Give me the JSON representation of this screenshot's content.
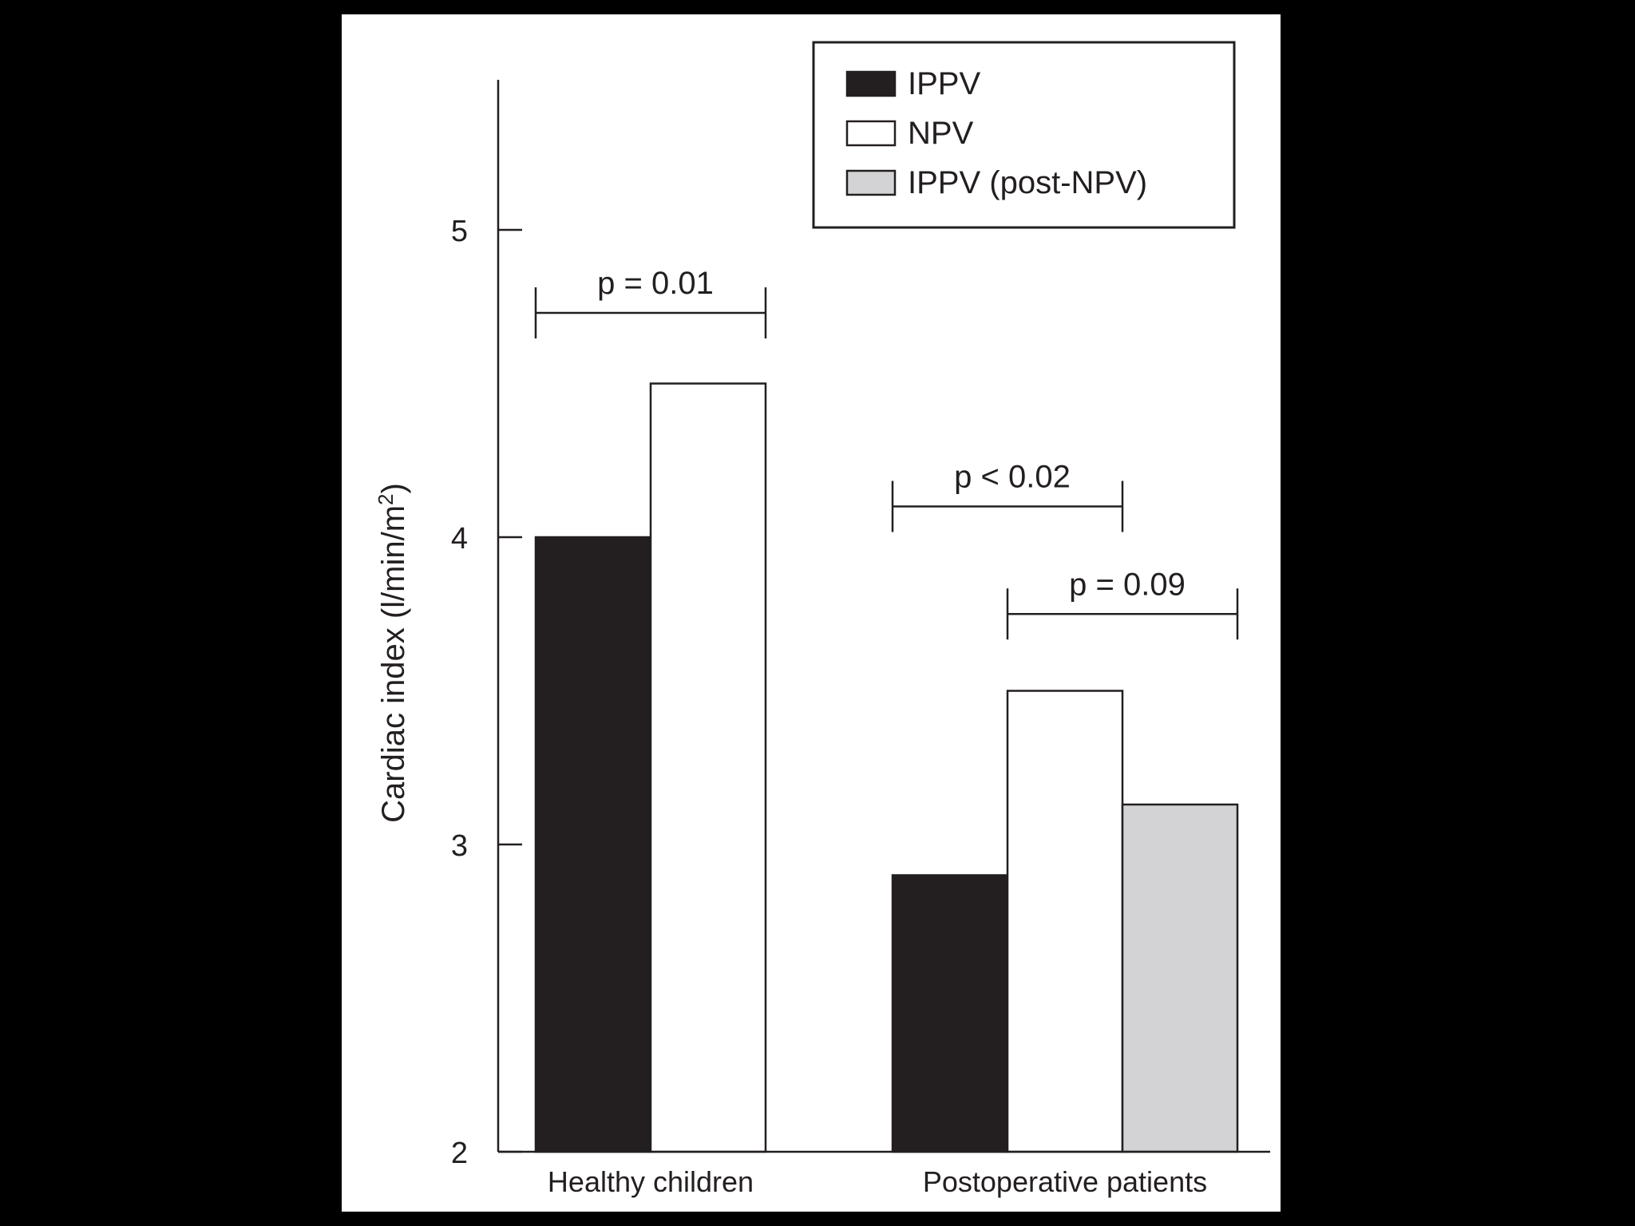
{
  "chart_data": {
    "type": "bar",
    "categories": [
      "Healthy children",
      "Postoperative patients"
    ],
    "series": [
      {
        "name": "IPPV",
        "values": [
          4.0,
          2.9
        ],
        "color": "#231f20"
      },
      {
        "name": "NPV",
        "values": [
          4.5,
          3.5
        ],
        "color": "#ffffff"
      },
      {
        "name": "IPPV (post-NPV)",
        "values": [
          null,
          3.13
        ],
        "color": "#d3d3d5"
      }
    ],
    "title": "",
    "xlabel": "",
    "ylabel": "Cardiac index (l/min/m",
    "ylabel_superscript": "2",
    "ylabel_suffix": ")",
    "ylim": [
      2,
      5.5
    ],
    "yticks": [
      2,
      3,
      4,
      5
    ],
    "grid": false,
    "legend": {
      "position": "top-right",
      "boxed": true
    },
    "annotations": [
      {
        "text": "p = 0.01",
        "category": 0,
        "from_series": 0,
        "to_series": 1,
        "level": 4.73
      },
      {
        "text": "p < 0.02",
        "category": 1,
        "from_series": 0,
        "to_series": 1,
        "level": 4.1
      },
      {
        "text": "p = 0.09",
        "category": 1,
        "from_series": 1,
        "to_series": 2,
        "level": 3.75
      }
    ]
  }
}
